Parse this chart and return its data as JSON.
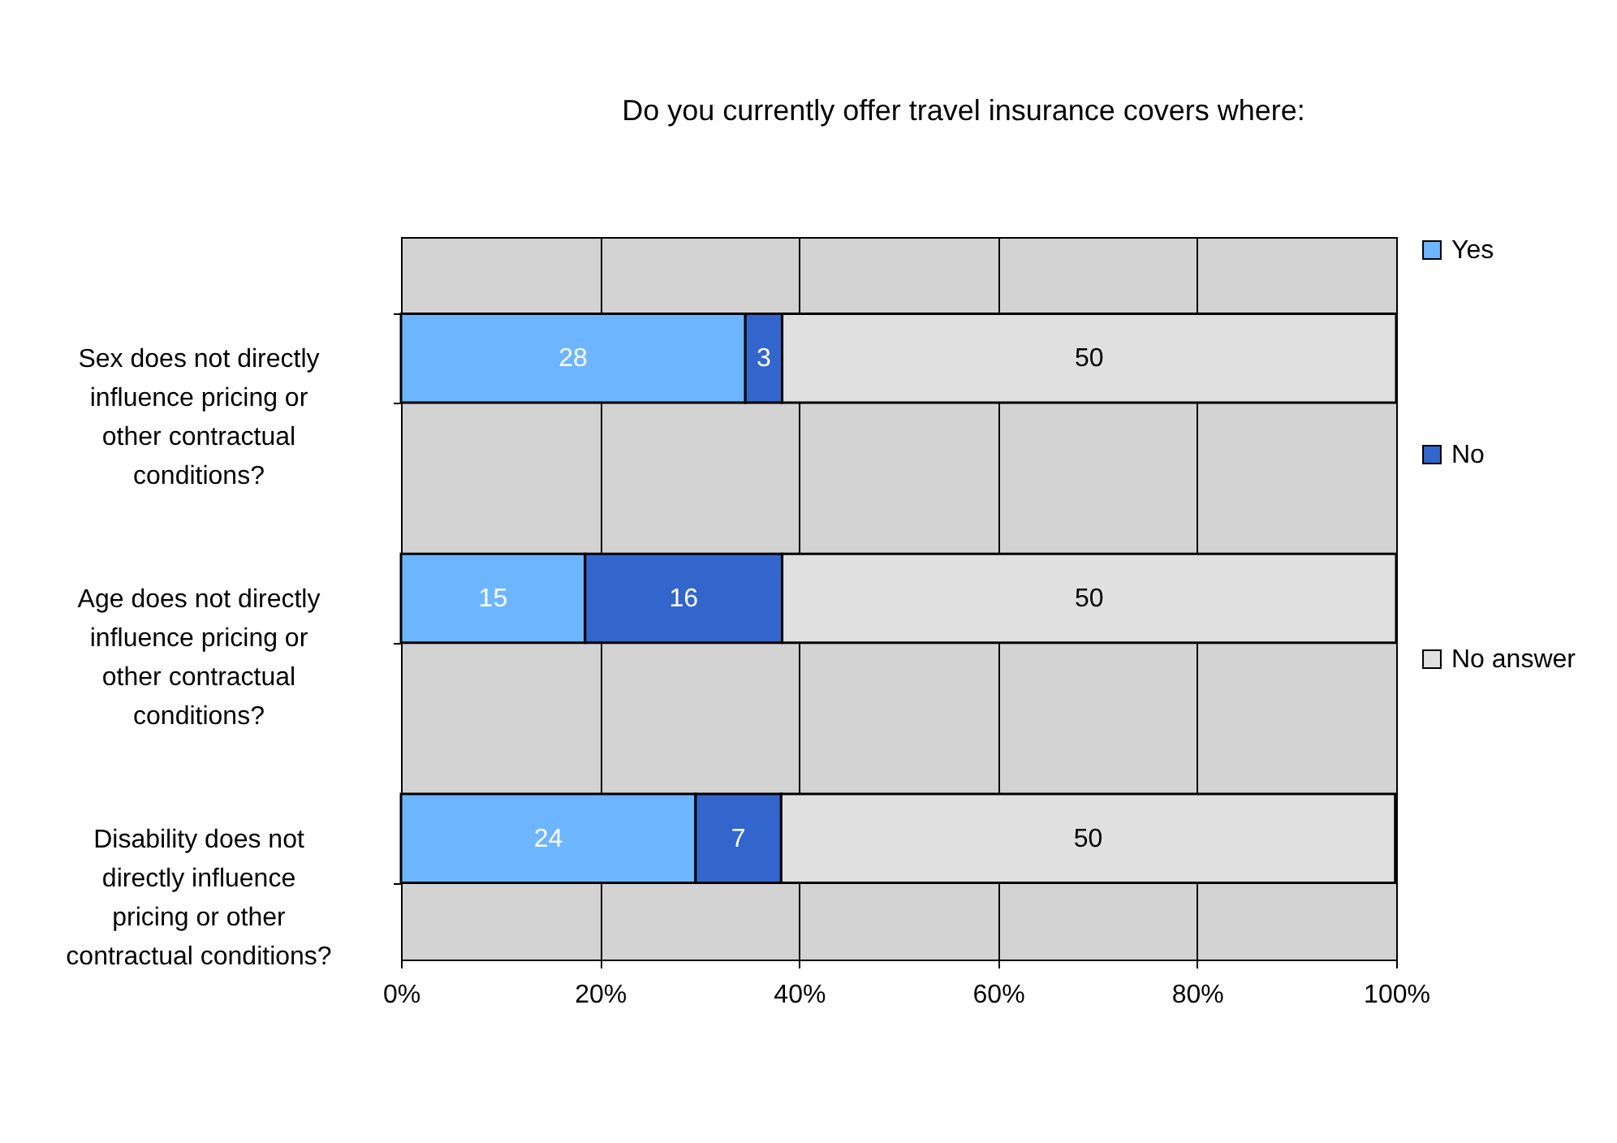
{
  "chart_data": {
    "type": "bar",
    "orientation": "horizontal",
    "stacked": true,
    "title": "Do you currently offer travel insurance covers where:",
    "categories": [
      "Sex does not directly influence pricing or other contractual conditions?",
      "Age does not directly influence pricing or other contractual conditions?",
      "Disability does not directly influence pricing or other contractual conditions?"
    ],
    "series": [
      {
        "name": "Yes",
        "color": "#6db6ff",
        "values": [
          34.6,
          18.5,
          29.6
        ]
      },
      {
        "name": "No",
        "color": "#3366cc",
        "values": [
          3.7,
          19.8,
          8.6
        ]
      },
      {
        "name": "No answer",
        "color": "#e0e0e0",
        "values": [
          61.7,
          61.7,
          61.7
        ]
      }
    ],
    "xlim": [
      0,
      100
    ],
    "xticks": [
      {
        "value": 0,
        "label": "0%"
      },
      {
        "value": 20,
        "label": "20%"
      },
      {
        "value": 40,
        "label": "40%"
      },
      {
        "value": 60,
        "label": "60%"
      },
      {
        "value": 80,
        "label": "80%"
      },
      {
        "value": 100,
        "label": "100%"
      }
    ],
    "annotations": [
      "28",
      "3",
      "50",
      "15",
      "16",
      "50",
      "24",
      "7",
      "50"
    ],
    "grid": "x",
    "legend": "right"
  }
}
